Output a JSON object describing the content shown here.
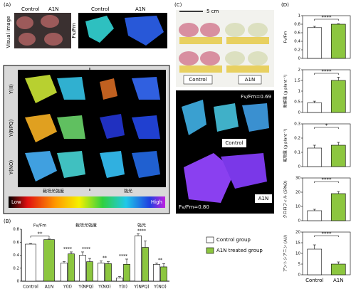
{
  "figure": {
    "panel_labels": [
      "(A)",
      "(B)",
      "(C)",
      "(D)"
    ],
    "a": {
      "visual_label": "Visual image",
      "fv_label": "Fv/Fm",
      "top_labels": [
        "Control",
        "A1N",
        "Control",
        "A1N"
      ],
      "rows": [
        "Y(II)",
        "Y(NPQ)",
        "Y(NO)"
      ],
      "columns": [
        "栽培光強度",
        "強光"
      ],
      "colorbar": [
        "Low",
        "High"
      ]
    },
    "c": {
      "scale": "5 cm",
      "photo_labels": [
        "Control",
        "A1N"
      ],
      "fluor_labels": [
        "Control",
        "A1N"
      ],
      "fv_values": [
        "Fv/Fm=0.69",
        "Fv/Fm=0.80"
      ]
    },
    "legend": [
      {
        "name": "Control group",
        "color": "#ffffff"
      },
      {
        "name": "A1N treated group",
        "color": "#8cc63f"
      }
    ]
  },
  "chart_data": [
    {
      "type": "grouped-bar",
      "ylim": [
        0,
        0.8
      ],
      "yticks": [
        0,
        0.2,
        0.4,
        0.6,
        0.8
      ],
      "groups": [
        {
          "title": "Fv/Fm",
          "categories": [
            "Control",
            "A1N"
          ],
          "values": [
            0.57,
            0.64
          ],
          "errors": [
            0.01,
            0.01
          ],
          "significance": "**"
        },
        {
          "title": "栽培光強度",
          "categories": [
            "Y(II)",
            "Y(NPQ)",
            "Y(NO)"
          ],
          "series": [
            {
              "values": [
                0.28,
                0.4,
                0.28
              ],
              "errors": [
                0.02,
                0.05,
                0.03
              ]
            },
            {
              "values": [
                0.42,
                0.3,
                0.27
              ],
              "errors": [
                0.03,
                0.05,
                0.03
              ]
            }
          ],
          "significance": [
            "****",
            "****",
            "**"
          ]
        },
        {
          "title": "強光",
          "categories": [
            "Y(II)",
            "Y(NPQ)",
            "Y(NO)"
          ],
          "series": [
            {
              "values": [
                0.05,
                0.7,
                0.26
              ],
              "errors": [
                0.02,
                0.03,
                0.02
              ]
            },
            {
              "values": [
                0.26,
                0.52,
                0.22
              ],
              "errors": [
                0.08,
                0.1,
                0.05
              ]
            }
          ],
          "significance": [
            "****",
            "****",
            "**"
          ]
        }
      ]
    },
    {
      "type": "bar",
      "ylabel": "Fv/Fm",
      "ylim": [
        0,
        1
      ],
      "yticks": [
        0,
        0.2,
        0.4,
        0.6,
        0.8,
        1
      ],
      "values": [
        0.72,
        0.8
      ],
      "errors": [
        0.03,
        0.01
      ],
      "significance": "****"
    },
    {
      "type": "bar",
      "ylabel": "新鮮重 (g plant⁻¹)",
      "ylim": [
        0,
        2
      ],
      "yticks": [
        0,
        0.5,
        1,
        1.5,
        2
      ],
      "values": [
        0.45,
        1.5
      ],
      "errors": [
        0.08,
        0.15
      ],
      "significance": "****"
    },
    {
      "type": "bar",
      "ylabel": "乾物重 (g plant⁻¹)",
      "ylim": [
        0,
        0.3
      ],
      "yticks": [
        0,
        0.1,
        0.2,
        0.3
      ],
      "values": [
        0.13,
        0.15
      ],
      "errors": [
        0.02,
        0.02
      ],
      "significance": "*"
    },
    {
      "type": "bar",
      "ylabel": "クロロフィル (SPAD)",
      "ylim": [
        0,
        30
      ],
      "yticks": [
        0,
        10,
        20,
        30
      ],
      "values": [
        7,
        19
      ],
      "errors": [
        1,
        1.5
      ],
      "significance": "****"
    },
    {
      "type": "bar",
      "ylabel": "アントシアニン (AU)",
      "ylim": [
        0,
        20
      ],
      "yticks": [
        0,
        5,
        10,
        15,
        20
      ],
      "values": [
        12,
        5
      ],
      "errors": [
        2,
        1
      ],
      "significance": "****",
      "categories": [
        "Control",
        "A1N"
      ]
    }
  ]
}
